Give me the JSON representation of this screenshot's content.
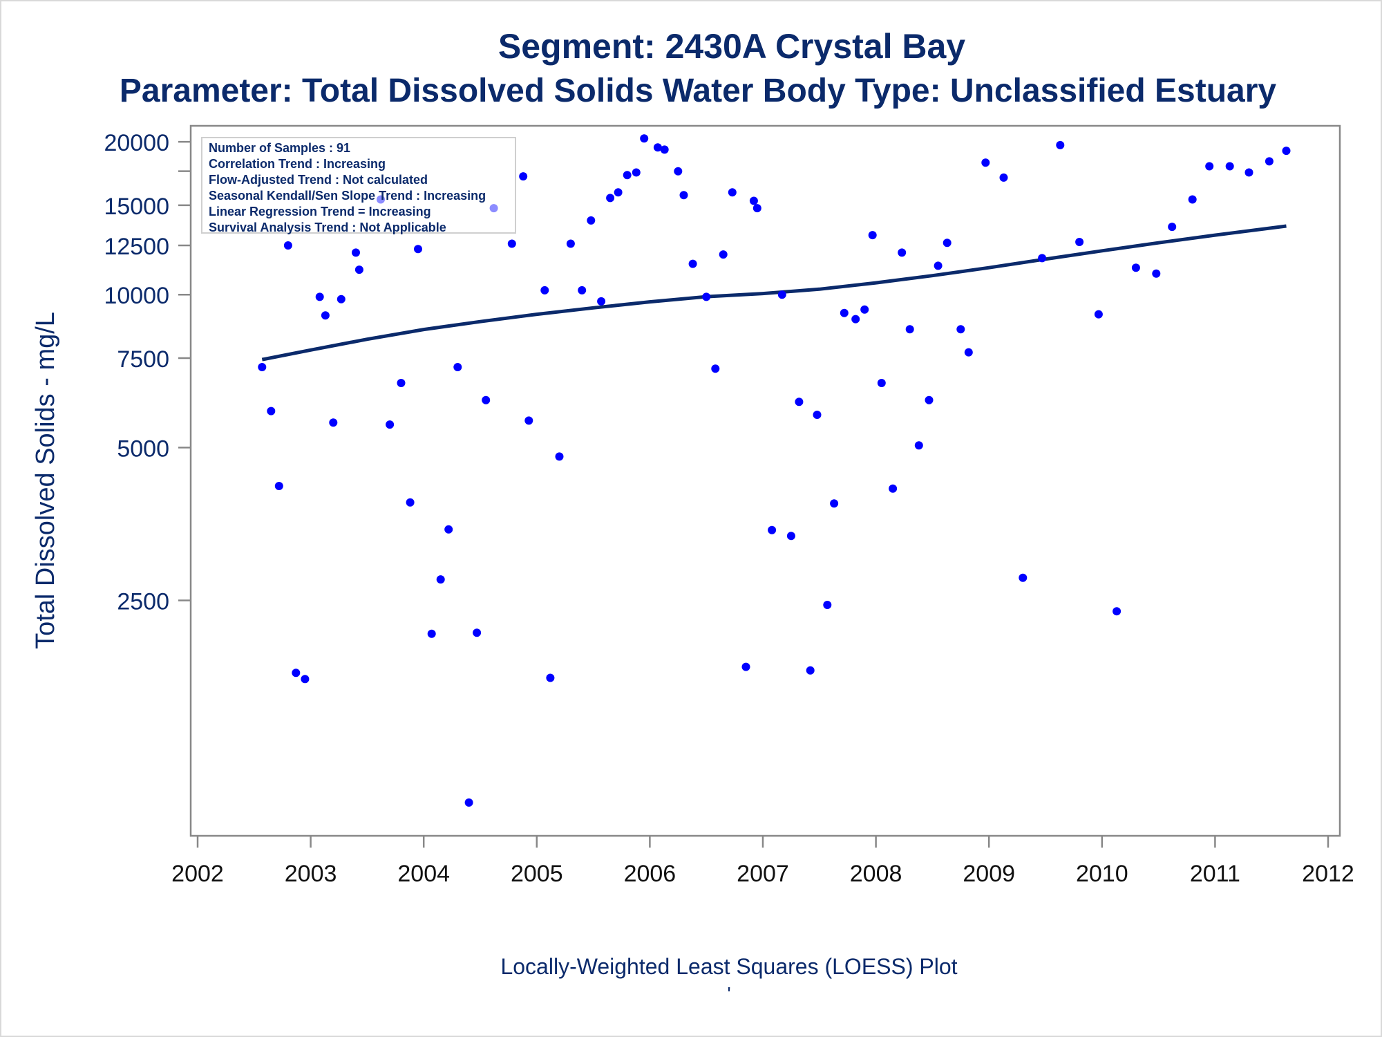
{
  "titles": {
    "line1": "Segment: 2430A  Crystal Bay",
    "line2": "Parameter: Total Dissolved Solids   Water Body Type: Unclassified Estuary"
  },
  "footer": {
    "caption": "Locally-Weighted Least Squares (LOESS) Plot",
    "mark": "'"
  },
  "stats_box": {
    "lines": [
      "Number of Samples : 91",
      "Correlation Trend : Increasing",
      "Flow-Adjusted Trend : Not calculated",
      "Seasonal Kendall/Sen Slope Trend : Increasing",
      "Linear Regression Trend = Increasing",
      "Survival Analysis Trend : Not Applicable"
    ]
  },
  "colors": {
    "text": "#0b2a6b",
    "points": "#0000ff",
    "loess_line": "#0b2a6b",
    "axis": "#888888"
  },
  "chart_data": {
    "type": "scatter",
    "ylabel": "Total Dissolved Solids - mg/L",
    "xlabel": "",
    "y_scale": "log",
    "xlim": [
      2002,
      2012
    ],
    "ylim": [
      860,
      21500
    ],
    "x_ticks": [
      2002,
      2003,
      2004,
      2005,
      2006,
      2007,
      2008,
      2009,
      2010,
      2011,
      2012
    ],
    "y_ticks": [
      2500,
      5000,
      7500,
      10000,
      12500,
      15000,
      20000
    ],
    "y_minor_ticks": [
      17500
    ],
    "grid": false,
    "series": [
      {
        "kind": "points",
        "points": [
          [
            2002.57,
            7200
          ],
          [
            2002.65,
            5900
          ],
          [
            2002.72,
            4200
          ],
          [
            2002.8,
            12500
          ],
          [
            2002.87,
            1800
          ],
          [
            2002.95,
            1750
          ],
          [
            2003.08,
            9900
          ],
          [
            2003.13,
            9100
          ],
          [
            2003.2,
            5600
          ],
          [
            2003.27,
            9800
          ],
          [
            2003.4,
            12100
          ],
          [
            2003.43,
            11200
          ],
          [
            2003.62,
            15400
          ],
          [
            2003.7,
            5550
          ],
          [
            2003.8,
            6700
          ],
          [
            2003.88,
            3900
          ],
          [
            2003.95,
            12300
          ],
          [
            2004.07,
            2150
          ],
          [
            2004.15,
            2750
          ],
          [
            2004.22,
            3450
          ],
          [
            2004.3,
            7200
          ],
          [
            2004.4,
            1000
          ],
          [
            2004.47,
            2160
          ],
          [
            2004.55,
            6200
          ],
          [
            2004.62,
            14800
          ],
          [
            2004.78,
            12600
          ],
          [
            2004.88,
            17100
          ],
          [
            2004.93,
            5650
          ],
          [
            2005.07,
            10200
          ],
          [
            2005.12,
            1760
          ],
          [
            2005.2,
            4800
          ],
          [
            2005.3,
            12600
          ],
          [
            2005.4,
            10200
          ],
          [
            2005.48,
            14000
          ],
          [
            2005.57,
            9700
          ],
          [
            2005.65,
            15500
          ],
          [
            2005.72,
            15900
          ],
          [
            2005.8,
            17200
          ],
          [
            2005.88,
            17400
          ],
          [
            2005.95,
            20300
          ],
          [
            2006.07,
            19500
          ],
          [
            2006.13,
            19300
          ],
          [
            2006.25,
            17500
          ],
          [
            2006.3,
            15700
          ],
          [
            2006.38,
            11500
          ],
          [
            2006.5,
            9900
          ],
          [
            2006.58,
            7150
          ],
          [
            2006.65,
            12000
          ],
          [
            2006.73,
            15900
          ],
          [
            2006.85,
            1850
          ],
          [
            2006.92,
            15300
          ],
          [
            2006.95,
            14800
          ],
          [
            2007.08,
            3440
          ],
          [
            2007.17,
            10000
          ],
          [
            2007.25,
            3350
          ],
          [
            2007.32,
            6150
          ],
          [
            2007.42,
            1820
          ],
          [
            2007.48,
            5800
          ],
          [
            2007.57,
            2450
          ],
          [
            2007.63,
            3880
          ],
          [
            2007.72,
            9200
          ],
          [
            2007.82,
            8950
          ],
          [
            2007.9,
            9350
          ],
          [
            2007.97,
            13100
          ],
          [
            2008.05,
            6700
          ],
          [
            2008.15,
            4150
          ],
          [
            2008.23,
            12100
          ],
          [
            2008.3,
            8550
          ],
          [
            2008.38,
            5050
          ],
          [
            2008.47,
            6200
          ],
          [
            2008.55,
            11400
          ],
          [
            2008.63,
            12650
          ],
          [
            2008.75,
            8550
          ],
          [
            2008.82,
            7700
          ],
          [
            2008.97,
            18200
          ],
          [
            2009.13,
            17000
          ],
          [
            2009.3,
            2770
          ],
          [
            2009.47,
            11800
          ],
          [
            2009.63,
            19700
          ],
          [
            2009.8,
            12700
          ],
          [
            2009.97,
            9150
          ],
          [
            2010.13,
            2380
          ],
          [
            2010.3,
            11300
          ],
          [
            2010.48,
            11000
          ],
          [
            2010.62,
            13600
          ],
          [
            2010.8,
            15400
          ],
          [
            2010.95,
            17900
          ],
          [
            2011.13,
            17900
          ],
          [
            2011.3,
            17400
          ],
          [
            2011.48,
            18300
          ],
          [
            2011.63,
            19200
          ]
        ]
      },
      {
        "kind": "loess_line",
        "points": [
          [
            2002.57,
            7450
          ],
          [
            2003.0,
            7780
          ],
          [
            2003.5,
            8170
          ],
          [
            2004.0,
            8540
          ],
          [
            2004.5,
            8850
          ],
          [
            2005.0,
            9150
          ],
          [
            2005.5,
            9420
          ],
          [
            2006.0,
            9680
          ],
          [
            2006.5,
            9910
          ],
          [
            2007.0,
            10050
          ],
          [
            2007.5,
            10250
          ],
          [
            2008.0,
            10550
          ],
          [
            2008.5,
            10900
          ],
          [
            2009.0,
            11300
          ],
          [
            2009.5,
            11750
          ],
          [
            2010.0,
            12200
          ],
          [
            2010.5,
            12650
          ],
          [
            2011.0,
            13100
          ],
          [
            2011.63,
            13650
          ]
        ]
      }
    ]
  }
}
